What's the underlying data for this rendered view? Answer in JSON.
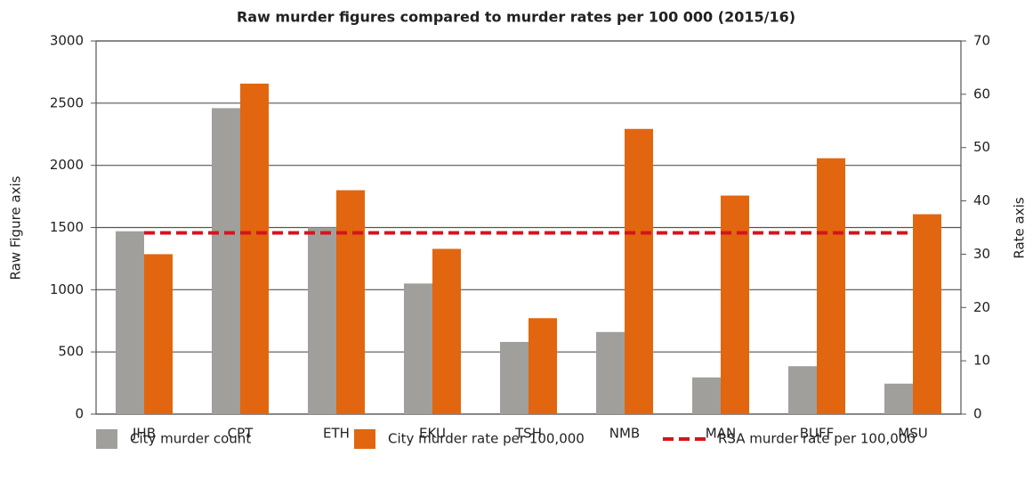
{
  "chart_data": {
    "type": "bar",
    "title": "Raw murder figures compared to murder rates per 100 000 (2015/16)",
    "y_label": "Raw Figure axis",
    "y2_label": "Rate axis",
    "categories": [
      "JHB",
      "CPT",
      "ETH",
      "EKU",
      "TSH",
      "NMB",
      "MAN",
      "BUFF",
      "MSU"
    ],
    "series": [
      {
        "name": "City murder count",
        "color": "#a09f9b",
        "type": "bar",
        "values": [
          1470,
          2460,
          1500,
          1050,
          580,
          660,
          295,
          385,
          245
        ]
      },
      {
        "name": "City murder rate per 100,000",
        "color": "#e2660f",
        "type": "bar",
        "axis": "y2",
        "values": [
          30,
          62,
          42,
          31,
          18,
          53.5,
          41,
          48,
          37.5
        ]
      },
      {
        "name": "RSA murder rate per 100,000",
        "color": "#d7141a",
        "type": "line",
        "axis": "y2",
        "dashed": true,
        "values": [
          34,
          34,
          34,
          34,
          34,
          34,
          34,
          34,
          34
        ]
      }
    ],
    "ylim": [
      0,
      3000
    ],
    "yticks": [
      0,
      500,
      1000,
      1500,
      2000,
      2500,
      3000
    ],
    "y2lim": [
      0,
      70
    ],
    "y2ticks": [
      0,
      10,
      20,
      30,
      40,
      50,
      60,
      70
    ],
    "grid": true,
    "legend": "bottom"
  }
}
